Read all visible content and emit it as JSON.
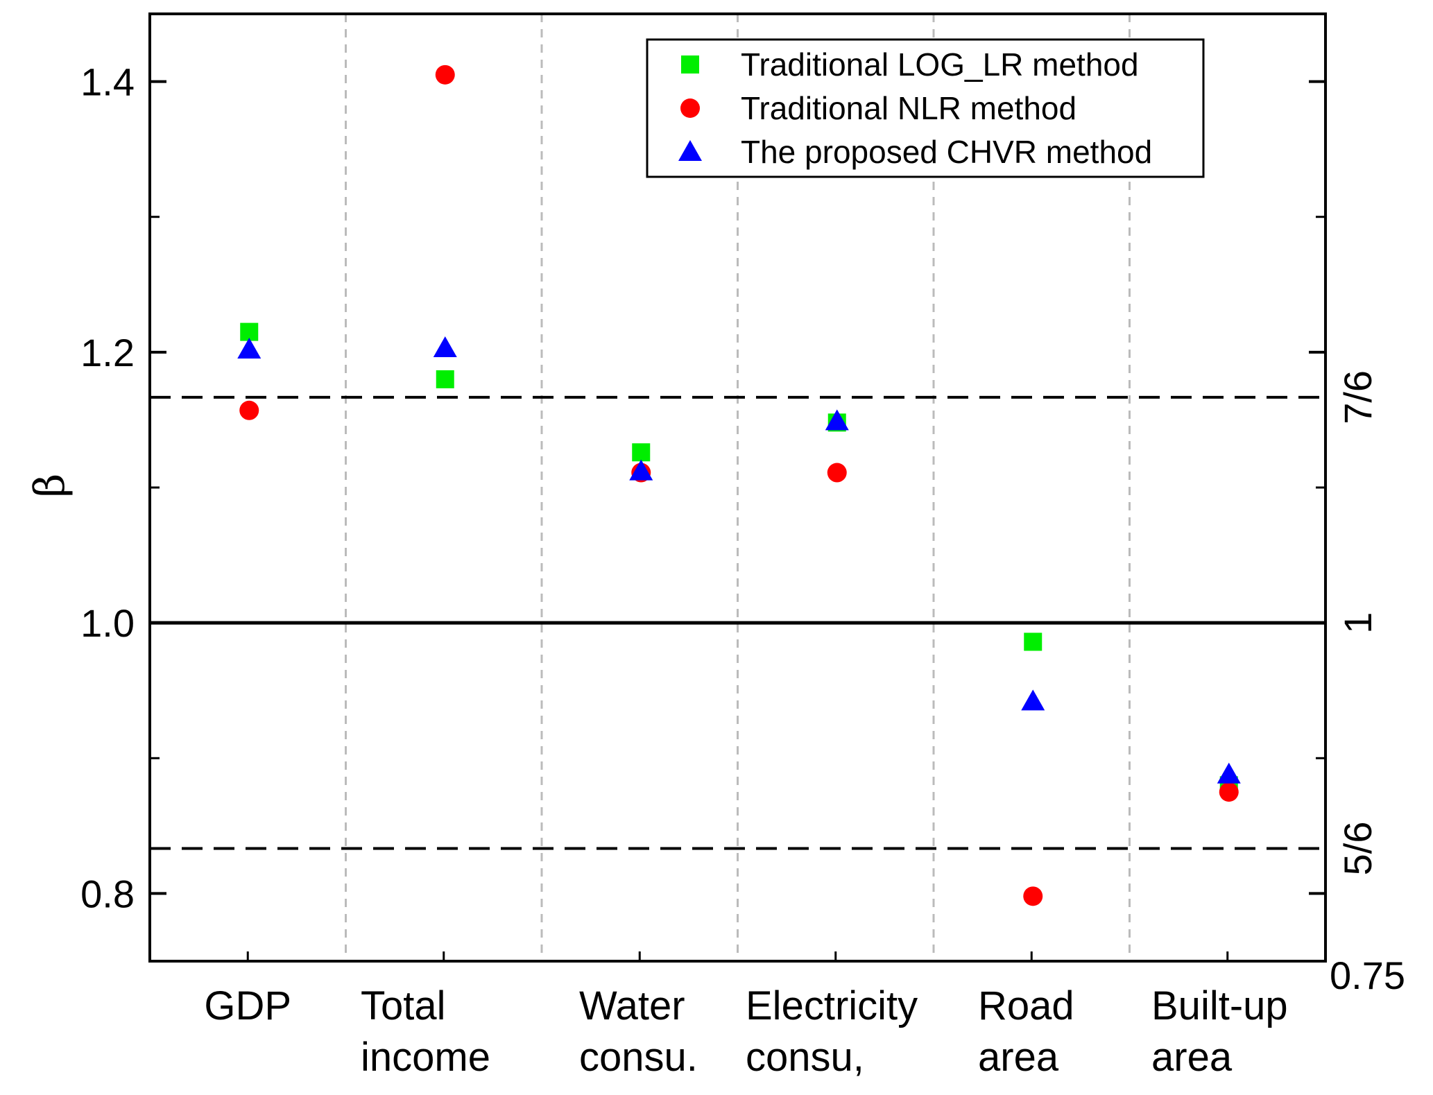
{
  "chart_data": {
    "type": "scatter",
    "title": "",
    "xlabel": "",
    "ylabel": "β",
    "ylim": [
      0.75,
      1.45
    ],
    "categories": [
      [
        "GDP"
      ],
      [
        "Total",
        "income"
      ],
      [
        "Water",
        "consu."
      ],
      [
        "Electricity",
        "consu,"
      ],
      [
        "Road",
        "area"
      ],
      [
        "Built-up",
        "area"
      ]
    ],
    "left_ticks": [
      "0.8",
      "1.0",
      "1.2",
      "1.4"
    ],
    "left_tick_values": [
      0.8,
      1.0,
      1.2,
      1.4
    ],
    "right_ticks": [
      {
        "label": "0.75",
        "value": 0.75,
        "rotated": false
      },
      {
        "label": "5/6",
        "value": 0.8333,
        "rotated": true
      },
      {
        "label": "1",
        "value": 1.0,
        "rotated": true
      },
      {
        "label": "7/6",
        "value": 1.1667,
        "rotated": true
      }
    ],
    "reference_lines": [
      {
        "value": 1.0,
        "style": "solid"
      },
      {
        "value": 1.1667,
        "style": "dashed"
      },
      {
        "value": 0.8333,
        "style": "dashed"
      }
    ],
    "legend_position": "top-right",
    "series": [
      {
        "name": "Traditional LOG_LR method",
        "marker": "square",
        "color": "#00ee00",
        "values": [
          1.215,
          1.18,
          1.126,
          1.148,
          0.986,
          0.88
        ]
      },
      {
        "name": "Traditional NLR method",
        "marker": "circle",
        "color": "#ff0000",
        "values": [
          1.157,
          1.405,
          1.111,
          1.111,
          0.798,
          0.875
        ]
      },
      {
        "name": "The proposed CHVR method",
        "marker": "triangle",
        "color": "#0000ff",
        "values": [
          1.202,
          1.203,
          1.112,
          1.149,
          0.942,
          0.888
        ]
      }
    ]
  }
}
